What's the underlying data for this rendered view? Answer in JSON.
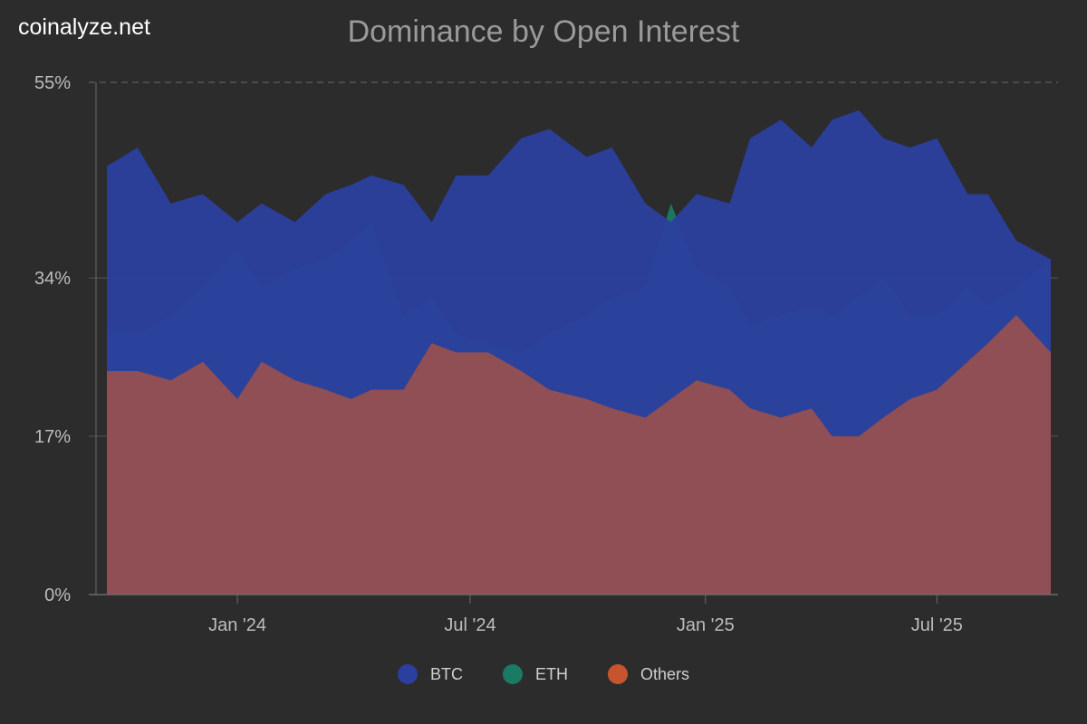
{
  "brand": "coinalyze.net",
  "chart_data": {
    "type": "area",
    "title": "Dominance by Open Interest",
    "xlabel": "",
    "ylabel": "",
    "ylim": [
      0,
      55
    ],
    "y_ticks": [
      {
        "value": 0,
        "label": "0%"
      },
      {
        "value": 17,
        "label": "17%"
      },
      {
        "value": 34,
        "label": "34%"
      },
      {
        "value": 55,
        "label": "55%"
      }
    ],
    "x_range": [
      "2023-09-21",
      "2025-09-28"
    ],
    "x_ticks": [
      {
        "date": "2024-01-01",
        "label": "Jan '24"
      },
      {
        "date": "2024-07-01",
        "label": "Jul '24"
      },
      {
        "date": "2025-01-01",
        "label": "Jan '25"
      },
      {
        "date": "2025-07-01",
        "label": "Jul '25"
      }
    ],
    "grid": true,
    "legend_position": "bottom",
    "series": [
      {
        "name": "BTC",
        "color": "#2b3f9e",
        "points": [
          [
            "2023-09-21",
            46
          ],
          [
            "2023-10-15",
            48
          ],
          [
            "2023-11-10",
            42
          ],
          [
            "2023-12-05",
            43
          ],
          [
            "2024-01-01",
            40
          ],
          [
            "2024-01-20",
            42
          ],
          [
            "2024-02-15",
            40
          ],
          [
            "2024-03-10",
            43
          ],
          [
            "2024-03-30",
            44
          ],
          [
            "2024-04-15",
            45
          ],
          [
            "2024-05-10",
            44
          ],
          [
            "2024-06-01",
            40
          ],
          [
            "2024-06-20",
            45
          ],
          [
            "2024-07-15",
            45
          ],
          [
            "2024-08-10",
            49
          ],
          [
            "2024-09-01",
            50
          ],
          [
            "2024-09-30",
            47
          ],
          [
            "2024-10-20",
            48
          ],
          [
            "2024-11-15",
            42
          ],
          [
            "2024-12-05",
            40
          ],
          [
            "2024-12-25",
            43
          ],
          [
            "2025-01-20",
            42
          ],
          [
            "2025-02-05",
            49
          ],
          [
            "2025-03-01",
            51
          ],
          [
            "2025-03-25",
            48
          ],
          [
            "2025-04-10",
            51
          ],
          [
            "2025-05-01",
            52
          ],
          [
            "2025-05-20",
            49
          ],
          [
            "2025-06-10",
            48
          ],
          [
            "2025-07-01",
            49
          ],
          [
            "2025-07-25",
            43
          ],
          [
            "2025-08-10",
            43
          ],
          [
            "2025-09-01",
            38
          ],
          [
            "2025-09-28",
            36
          ]
        ]
      },
      {
        "name": "ETH",
        "color": "#1a7a63",
        "points": [
          [
            "2023-09-21",
            28.5
          ],
          [
            "2023-10-15",
            28
          ],
          [
            "2023-11-10",
            30
          ],
          [
            "2023-12-05",
            33
          ],
          [
            "2024-01-01",
            37
          ],
          [
            "2024-01-20",
            33
          ],
          [
            "2024-02-15",
            35
          ],
          [
            "2024-03-10",
            36
          ],
          [
            "2024-03-30",
            38
          ],
          [
            "2024-04-15",
            40
          ],
          [
            "2024-05-10",
            30
          ],
          [
            "2024-06-01",
            32
          ],
          [
            "2024-06-20",
            28
          ],
          [
            "2024-07-15",
            27
          ],
          [
            "2024-08-10",
            26
          ],
          [
            "2024-09-01",
            28
          ],
          [
            "2024-09-30",
            30
          ],
          [
            "2024-10-20",
            32
          ],
          [
            "2024-11-15",
            33
          ],
          [
            "2024-12-05",
            42
          ],
          [
            "2024-12-25",
            35
          ],
          [
            "2025-01-20",
            33
          ],
          [
            "2025-02-05",
            29
          ],
          [
            "2025-03-01",
            30
          ],
          [
            "2025-03-25",
            31
          ],
          [
            "2025-04-10",
            30
          ],
          [
            "2025-05-01",
            32
          ],
          [
            "2025-05-20",
            34
          ],
          [
            "2025-06-10",
            30
          ],
          [
            "2025-07-01",
            30
          ],
          [
            "2025-07-25",
            33
          ],
          [
            "2025-08-10",
            31
          ],
          [
            "2025-09-01",
            33
          ],
          [
            "2025-09-28",
            36
          ]
        ]
      },
      {
        "name": "Others",
        "color": "#c8542f",
        "points": [
          [
            "2023-09-21",
            24
          ],
          [
            "2023-10-15",
            24
          ],
          [
            "2023-11-10",
            23
          ],
          [
            "2023-12-05",
            25
          ],
          [
            "2024-01-01",
            21
          ],
          [
            "2024-01-20",
            25
          ],
          [
            "2024-02-15",
            23
          ],
          [
            "2024-03-10",
            22
          ],
          [
            "2024-03-30",
            21
          ],
          [
            "2024-04-15",
            22
          ],
          [
            "2024-05-10",
            22
          ],
          [
            "2024-06-01",
            27
          ],
          [
            "2024-06-20",
            26
          ],
          [
            "2024-07-15",
            26
          ],
          [
            "2024-08-10",
            24
          ],
          [
            "2024-09-01",
            22
          ],
          [
            "2024-09-30",
            21
          ],
          [
            "2024-10-20",
            20
          ],
          [
            "2024-11-15",
            19
          ],
          [
            "2024-12-05",
            21
          ],
          [
            "2024-12-25",
            23
          ],
          [
            "2025-01-20",
            22
          ],
          [
            "2025-02-05",
            20
          ],
          [
            "2025-03-01",
            19
          ],
          [
            "2025-03-25",
            20
          ],
          [
            "2025-04-10",
            17
          ],
          [
            "2025-05-01",
            17
          ],
          [
            "2025-05-20",
            19
          ],
          [
            "2025-06-10",
            21
          ],
          [
            "2025-07-01",
            22
          ],
          [
            "2025-07-25",
            25
          ],
          [
            "2025-08-10",
            27
          ],
          [
            "2025-09-01",
            30
          ],
          [
            "2025-09-28",
            26
          ]
        ]
      }
    ]
  }
}
